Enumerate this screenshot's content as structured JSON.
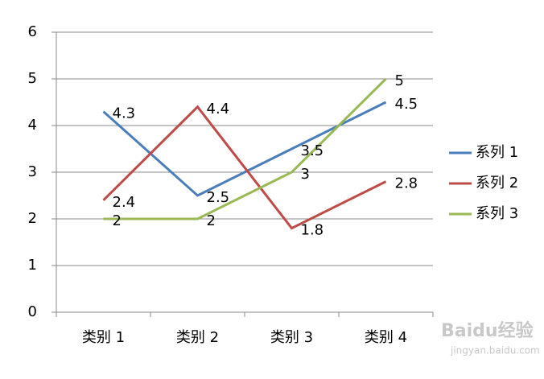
{
  "chart_data": {
    "type": "line",
    "categories": [
      "类别 1",
      "类别 2",
      "类别 3",
      "类别 4"
    ],
    "series": [
      {
        "name": "系列 1",
        "color": "#4a7ebb",
        "values": [
          4.3,
          2.5,
          3.5,
          4.5
        ]
      },
      {
        "name": "系列 2",
        "color": "#be4b48",
        "values": [
          2.4,
          4.4,
          1.8,
          2.8
        ]
      },
      {
        "name": "系列 3",
        "color": "#98b954",
        "values": [
          2,
          2,
          3,
          5
        ]
      }
    ],
    "ylim": [
      0,
      6
    ],
    "yticks": [
      0,
      1,
      2,
      3,
      4,
      5,
      6
    ],
    "grid": true,
    "legend": "right",
    "watermark": [
      "Baidu经验",
      "jingyan.baidu.com"
    ]
  }
}
